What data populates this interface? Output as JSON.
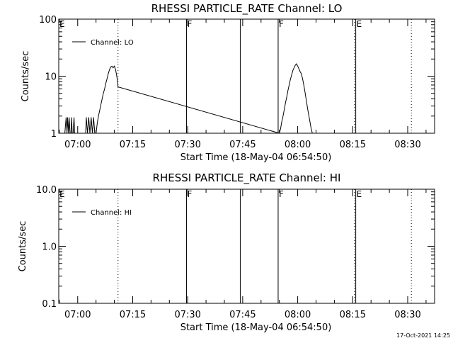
{
  "footer_timestamp": "17-Oct-2021 14:25",
  "chart_data": [
    {
      "type": "line",
      "title": "RHESSI PARTICLE_RATE Channel: LO",
      "xlabel": "Start Time (18-May-04 06:54:50)",
      "ylabel": "Counts/sec",
      "yscale": "log",
      "ylim": [
        1,
        100
      ],
      "yticks": [
        1,
        10,
        100
      ],
      "ytick_labels": [
        "1",
        "10",
        "100"
      ],
      "xlim": [
        "06:54:50",
        "08:37:20"
      ],
      "xticks": [
        "07:00",
        "07:15",
        "07:30",
        "07:45",
        "08:00",
        "08:15",
        "08:30"
      ],
      "grid": false,
      "legend": {
        "position": "top-left",
        "entries": [
          "Channel: LO"
        ]
      },
      "series": [
        {
          "name": "Channel: LO",
          "x": [
            "06:56:30",
            "06:56:50",
            "06:57:05",
            "06:57:15",
            "06:57:30",
            "06:57:40",
            "06:57:55",
            "06:58:10",
            "06:58:20",
            "06:58:30",
            "06:58:45",
            "06:59:00",
            "06:59:10",
            "06:59:20",
            "06:59:30",
            "06:59:40",
            "06:59:50",
            "07:00:00",
            "07:00:20",
            "07:00:40",
            "07:01:00",
            "07:01:20",
            "07:01:40",
            "07:02:00",
            "07:02:10",
            "07:02:20",
            "07:02:40",
            "07:03:00",
            "07:03:20",
            "07:03:40",
            "07:04:00",
            "07:04:20",
            "07:04:40",
            "07:05:00",
            "07:05:20",
            "07:05:40",
            "07:06:00",
            "07:06:20",
            "07:06:40",
            "07:07:00",
            "07:07:20",
            "07:07:40",
            "07:08:00",
            "07:08:20",
            "07:08:40",
            "07:09:00",
            "07:09:20",
            "07:09:40",
            "07:10:00",
            "07:10:20",
            "07:10:40",
            "07:11:00",
            "07:55:00",
            "07:55:20",
            "07:55:40",
            "07:56:00",
            "07:56:20",
            "07:56:40",
            "07:57:00",
            "07:57:20",
            "07:57:40",
            "07:58:00",
            "07:58:20",
            "07:58:40",
            "07:59:00",
            "07:59:20",
            "07:59:40",
            "08:00:00",
            "08:00:20",
            "08:00:40",
            "08:01:00",
            "08:01:20",
            "08:01:40",
            "08:02:00",
            "08:02:20",
            "08:02:40",
            "08:03:00",
            "08:03:20",
            "08:03:40",
            "08:04:00",
            "08:04:20",
            "08:04:40",
            "08:05:00",
            "08:05:20"
          ],
          "y": [
            1.0,
            1.9,
            1.0,
            1.9,
            1.0,
            1.9,
            1.0,
            1.0,
            1.9,
            1.0,
            1.0,
            1.9,
            1.0,
            1.0,
            1.0,
            1.0,
            1.0,
            1.0,
            1.0,
            1.0,
            1.0,
            1.0,
            1.0,
            1.0,
            1.0,
            1.9,
            1.0,
            1.9,
            1.0,
            1.9,
            1.0,
            1.9,
            1.0,
            1.0,
            1.5,
            2.0,
            2.5,
            3.2,
            4.0,
            5.0,
            6.0,
            7.5,
            9.0,
            11.0,
            13.0,
            14.5,
            15.0,
            14.0,
            15.0,
            13.0,
            10.0,
            6.5,
            1.0,
            1.2,
            1.6,
            2.0,
            2.6,
            3.4,
            4.3,
            5.6,
            7.0,
            8.7,
            10.5,
            12.5,
            14.0,
            15.5,
            16.5,
            15.0,
            13.5,
            12.0,
            11.0,
            9.0,
            7.0,
            5.2,
            3.8,
            2.8,
            2.1,
            1.6,
            1.2,
            1.0,
            1.0,
            1.0,
            1.0,
            1.0
          ]
        }
      ],
      "markers": [
        {
          "time": "07:11:00",
          "style": "dotted",
          "label": ""
        },
        {
          "time": "07:29:40",
          "style": "solid",
          "label": "F"
        },
        {
          "time": "07:44:20",
          "style": "solid",
          "label": ""
        },
        {
          "time": "07:54:40",
          "style": "solid",
          "label": "F"
        },
        {
          "time": "08:15:30",
          "style": "dotted",
          "label": ""
        },
        {
          "time": "08:15:50",
          "style": "solid",
          "label": "E"
        },
        {
          "time": "08:31:00",
          "style": "dotted",
          "label": ""
        }
      ],
      "corner_label": "E"
    },
    {
      "type": "line",
      "title": "RHESSI PARTICLE_RATE Channel: HI",
      "xlabel": "Start Time (18-May-04 06:54:50)",
      "ylabel": "Counts/sec",
      "yscale": "log",
      "ylim": [
        0.1,
        10
      ],
      "yticks": [
        0.1,
        1,
        10
      ],
      "ytick_labels": [
        "0.1",
        "1.0",
        "10.0"
      ],
      "xlim": [
        "06:54:50",
        "08:37:20"
      ],
      "xticks": [
        "07:00",
        "07:15",
        "07:30",
        "07:45",
        "08:00",
        "08:15",
        "08:30"
      ],
      "grid": false,
      "legend": {
        "position": "top-left",
        "entries": [
          "Channel: HI"
        ]
      },
      "series": [
        {
          "name": "Channel: HI",
          "x": [],
          "y": []
        }
      ],
      "markers": [
        {
          "time": "07:11:00",
          "style": "dotted",
          "label": ""
        },
        {
          "time": "07:29:40",
          "style": "solid",
          "label": "F"
        },
        {
          "time": "07:44:20",
          "style": "solid",
          "label": ""
        },
        {
          "time": "07:54:40",
          "style": "solid",
          "label": "F"
        },
        {
          "time": "08:15:30",
          "style": "dotted",
          "label": ""
        },
        {
          "time": "08:15:50",
          "style": "solid",
          "label": "E"
        },
        {
          "time": "08:31:00",
          "style": "dotted",
          "label": ""
        }
      ],
      "corner_label": "E"
    }
  ]
}
